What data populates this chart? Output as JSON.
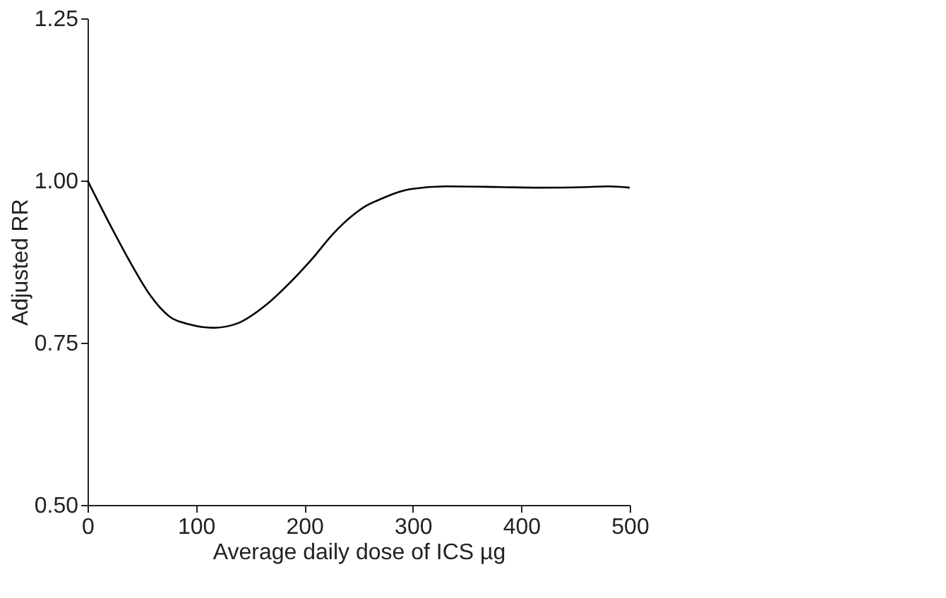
{
  "chart_data": {
    "type": "line",
    "xlabel": "Average daily dose of ICS µg",
    "ylabel": "Adjusted RR",
    "x": [
      0,
      22.6,
      41.4,
      57,
      75.9,
      94.7,
      116.6,
      138.6,
      163.7,
      188.7,
      207.5,
      226,
      245,
      258,
      267,
      298.5,
      330,
      380,
      420,
      460,
      480,
      500
    ],
    "series": [
      {
        "color": "#000000",
        "values": [
          1.0,
          0.926,
          0.868,
          0.825,
          0.79,
          0.778,
          0.773,
          0.78,
          0.807,
          0.846,
          0.88,
          0.917,
          0.947,
          0.962,
          0.969,
          0.987,
          0.991,
          0.99,
          0.989,
          0.99,
          0.991,
          0.989
        ]
      }
    ],
    "xlim": [
      0,
      500
    ],
    "xticks": [
      0,
      100,
      200,
      300,
      400,
      500
    ],
    "ylim": [
      0.5,
      1.25
    ],
    "yticks": [
      {
        "value": 0.5,
        "label": "0.50"
      },
      {
        "value": 0.75,
        "label": "0.75"
      },
      {
        "value": 1.0,
        "label": "1.00"
      },
      {
        "value": 1.25,
        "label": "1.25"
      }
    ],
    "grid": false,
    "marker": "none",
    "line_style": "solid"
  }
}
